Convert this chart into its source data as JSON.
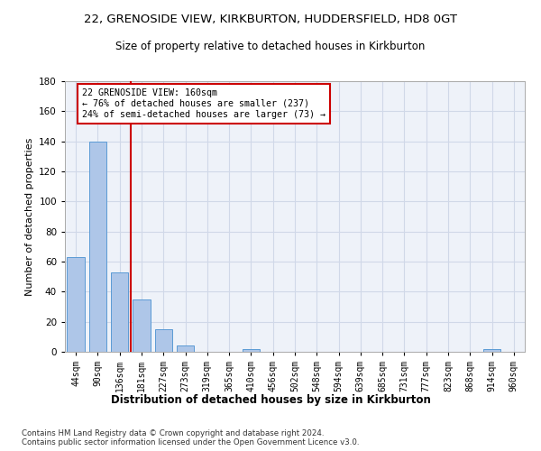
{
  "title": "22, GRENOSIDE VIEW, KIRKBURTON, HUDDERSFIELD, HD8 0GT",
  "subtitle": "Size of property relative to detached houses in Kirkburton",
  "xlabel": "Distribution of detached houses by size in Kirkburton",
  "ylabel": "Number of detached properties",
  "categories": [
    "44sqm",
    "90sqm",
    "136sqm",
    "181sqm",
    "227sqm",
    "273sqm",
    "319sqm",
    "365sqm",
    "410sqm",
    "456sqm",
    "502sqm",
    "548sqm",
    "594sqm",
    "639sqm",
    "685sqm",
    "731sqm",
    "777sqm",
    "823sqm",
    "868sqm",
    "914sqm",
    "960sqm"
  ],
  "values": [
    63,
    140,
    53,
    35,
    15,
    4,
    0,
    0,
    2,
    0,
    0,
    0,
    0,
    0,
    0,
    0,
    0,
    0,
    0,
    2,
    0
  ],
  "bar_color": "#aec6e8",
  "bar_edge_color": "#5b9bd5",
  "property_line_x": 2.5,
  "property_line_color": "#cc0000",
  "annotation_text": "22 GRENOSIDE VIEW: 160sqm\n← 76% of detached houses are smaller (237)\n24% of semi-detached houses are larger (73) →",
  "annotation_box_color": "#cc0000",
  "annotation_text_color": "#000000",
  "ylim": [
    0,
    180
  ],
  "yticks": [
    0,
    20,
    40,
    60,
    80,
    100,
    120,
    140,
    160,
    180
  ],
  "grid_color": "#d0d8e8",
  "background_color": "#eef2f9",
  "footer_text": "Contains HM Land Registry data © Crown copyright and database right 2024.\nContains public sector information licensed under the Open Government Licence v3.0.",
  "title_fontsize": 9.5,
  "subtitle_fontsize": 8.5,
  "xlabel_fontsize": 8.5,
  "ylabel_fontsize": 8.0
}
